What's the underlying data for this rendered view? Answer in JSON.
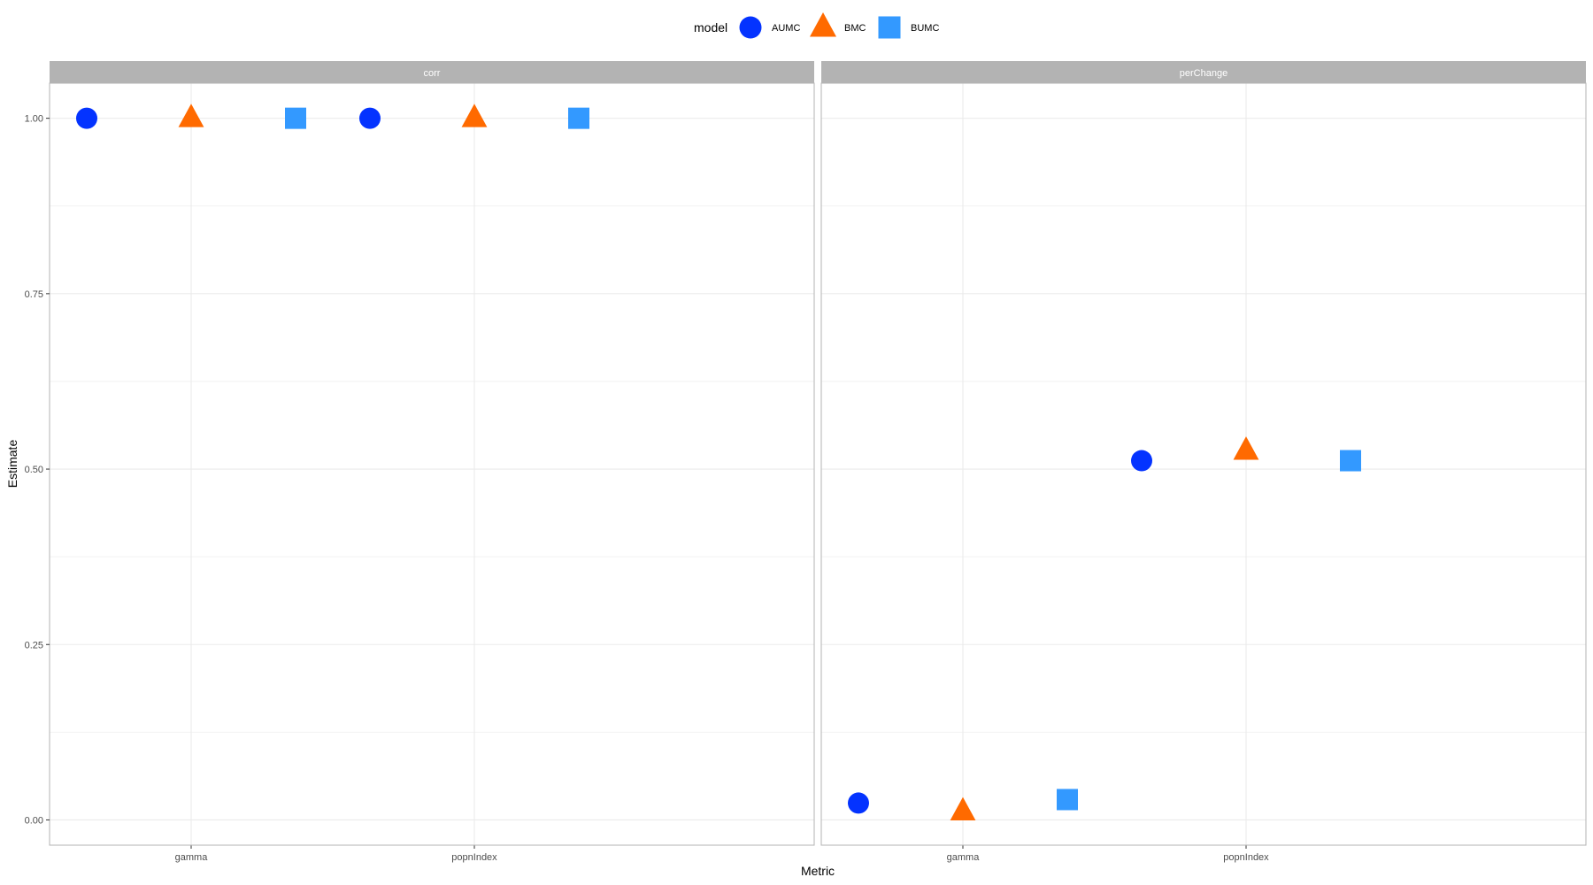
{
  "chart_data": {
    "type": "scatter",
    "xlabel": "Metric",
    "ylabel": "Estimate",
    "ylim": [
      -0.036,
      1.05
    ],
    "y_ticks": [
      0.0,
      0.25,
      0.5,
      0.75,
      1.0
    ],
    "y_tick_labels": [
      "0.00",
      "0.25",
      "0.50",
      "0.75",
      "1.00"
    ],
    "categories": [
      "gamma",
      "popnIndex"
    ],
    "grid": true,
    "legend": {
      "title": "model",
      "placement": "top",
      "entries": [
        {
          "name": "AUMC",
          "shape": "circle",
          "color": "#0433FF"
        },
        {
          "name": "BMC",
          "shape": "triangle",
          "color": "#FF6A00"
        },
        {
          "name": "BUMC",
          "shape": "square",
          "color": "#3399FF"
        }
      ]
    },
    "facets": [
      {
        "label": "corr",
        "series": [
          {
            "name": "AUMC",
            "values": [
              1.0,
              1.0
            ]
          },
          {
            "name": "BMC",
            "values": [
              1.0,
              1.0
            ]
          },
          {
            "name": "BUMC",
            "values": [
              1.0,
              1.0
            ]
          }
        ]
      },
      {
        "label": "perChange",
        "series": [
          {
            "name": "AUMC",
            "values": [
              0.024,
              0.512
            ]
          },
          {
            "name": "BMC",
            "values": [
              0.012,
              0.526
            ]
          },
          {
            "name": "BUMC",
            "values": [
              0.029,
              0.512
            ]
          }
        ]
      }
    ]
  }
}
